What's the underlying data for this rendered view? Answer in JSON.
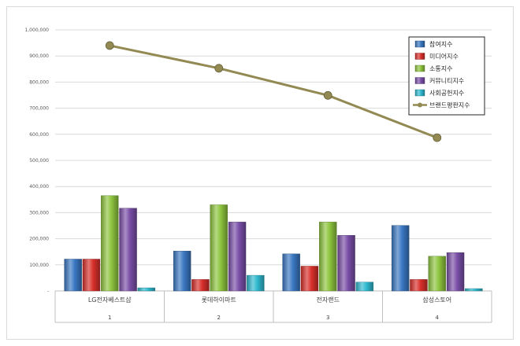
{
  "chart_data": {
    "type": "bar",
    "categories": [
      "LG전자베스트샵",
      "롯데하이마트",
      "전자랜드",
      "삼성스토어"
    ],
    "category_index": [
      "1",
      "2",
      "3",
      "4"
    ],
    "series": [
      {
        "name": "참여지수",
        "kind": "bar",
        "color": "#3a78c3",
        "values": [
          122000,
          153000,
          142000,
          251000
        ]
      },
      {
        "name": "미디어지수",
        "kind": "bar",
        "color": "#d9302b",
        "values": [
          122000,
          44000,
          95000,
          44000
        ]
      },
      {
        "name": "소통지수",
        "kind": "bar",
        "color": "#8ec53e",
        "values": [
          365000,
          330000,
          264000,
          133000
        ]
      },
      {
        "name": "커뮤니티지수",
        "kind": "bar",
        "color": "#7a4fa8",
        "values": [
          317000,
          264000,
          213000,
          147000
        ]
      },
      {
        "name": "사회공헌지수",
        "kind": "bar",
        "color": "#2fb9d0",
        "values": [
          12000,
          60000,
          34000,
          9000
        ]
      },
      {
        "name": "브랜드평판지수",
        "kind": "line",
        "color": "#938a53",
        "values": [
          940000,
          853000,
          749000,
          587000
        ]
      }
    ],
    "y_ticks": [
      "-",
      "100,000",
      "200,000",
      "300,000",
      "400,000",
      "500,000",
      "600,000",
      "700,000",
      "800,000",
      "900,000",
      "1,000,000"
    ],
    "ylim": [
      0,
      1000000
    ],
    "grid": true,
    "legend_position": "top-right"
  }
}
